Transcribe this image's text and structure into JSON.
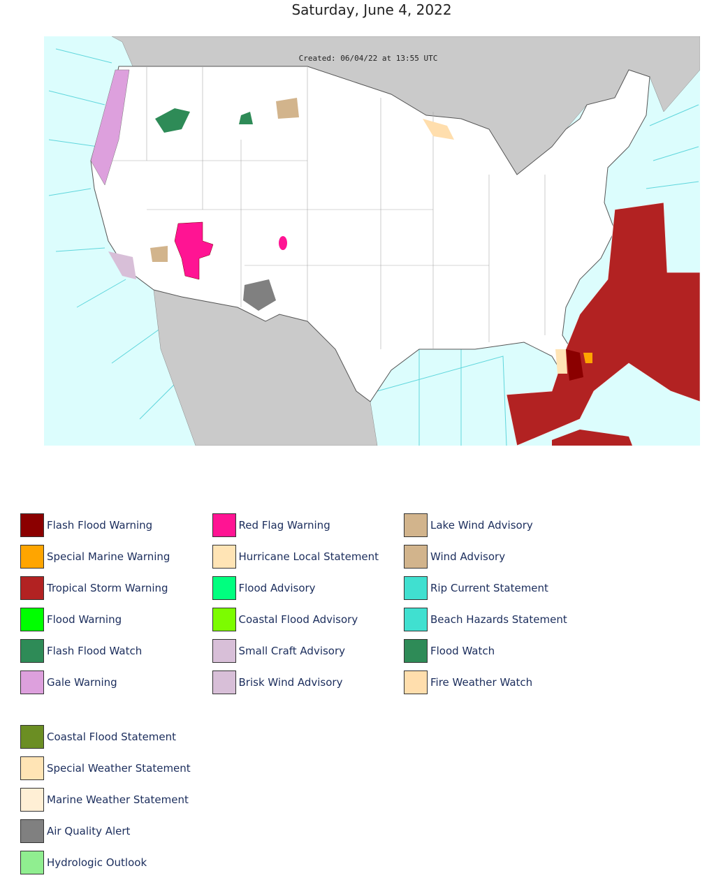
{
  "title": "Saturday, June 4, 2022",
  "map": {
    "created": "Created: 06/04/22 at 13:55 UTC"
  },
  "legend": [
    {
      "label": "Flash Flood Warning",
      "color": "#8b0000"
    },
    {
      "label": "Special Marine Warning",
      "color": "#ffa500"
    },
    {
      "label": "Tropical Storm Warning",
      "color": "#b22222"
    },
    {
      "label": "Flood Warning",
      "color": "#00ff00"
    },
    {
      "label": "Flash Flood Watch",
      "color": "#2e8b57"
    },
    {
      "label": "Gale Warning",
      "color": "#dda0dd"
    },
    {
      "label": "Red Flag Warning",
      "color": "#ff1493"
    },
    {
      "label": "Hurricane Local Statement",
      "color": "#ffe4b5"
    },
    {
      "label": "Flood Advisory",
      "color": "#00ff7f"
    },
    {
      "label": "Coastal Flood Advisory",
      "color": "#7cfc00"
    },
    {
      "label": "Small Craft Advisory",
      "color": "#d8bfd8"
    },
    {
      "label": "Brisk Wind Advisory",
      "color": "#d8bfd8"
    },
    {
      "label": "Lake Wind Advisory",
      "color": "#d2b48c"
    },
    {
      "label": "Wind Advisory",
      "color": "#d2b48c"
    },
    {
      "label": "Rip Current Statement",
      "color": "#40e0d0"
    },
    {
      "label": "Beach Hazards Statement",
      "color": "#40e0d0"
    },
    {
      "label": "Flood Watch",
      "color": "#2e8b57"
    },
    {
      "label": "Fire Weather Watch",
      "color": "#ffdead"
    }
  ],
  "legend_extra": [
    {
      "label": "Coastal Flood Statement",
      "color": "#6b8e23"
    },
    {
      "label": "Special Weather Statement",
      "color": "#ffe4b5"
    },
    {
      "label": "Marine Weather Statement",
      "color": "#ffefd5"
    },
    {
      "label": "Air Quality Alert",
      "color": "#808080"
    },
    {
      "label": "Hydrologic Outlook",
      "color": "#90ee90"
    }
  ]
}
